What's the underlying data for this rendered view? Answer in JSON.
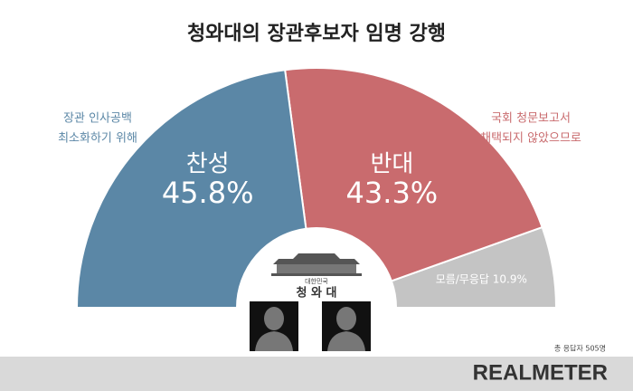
{
  "chart_data": {
    "type": "pie",
    "title": "청와대의 장관후보자 임명 강행",
    "categories": [
      "찬성",
      "반대",
      "모름/무응답"
    ],
    "values": [
      45.8,
      43.3,
      10.9
    ],
    "value_labels": [
      "45.8%",
      "43.3%",
      "10.9%"
    ],
    "colors": [
      "#5b87a6",
      "#c96b6e",
      "#c4c4c4"
    ],
    "annotations": [
      [
        "장관 인사공백",
        "최소화하기 위해"
      ],
      [
        "국회 청문보고서",
        "채택되지 않았으므로"
      ]
    ],
    "emblem": {
      "caption": "대한민국",
      "name": "청 와 대"
    },
    "note": "총 응답자 505명",
    "source": "REALMETER"
  }
}
